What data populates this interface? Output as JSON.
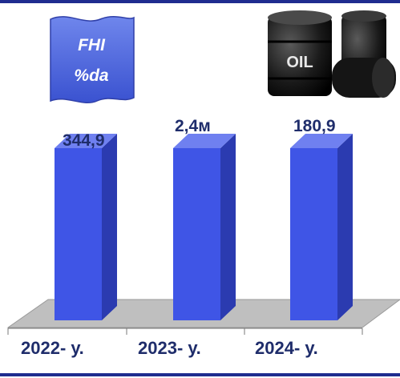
{
  "badge": {
    "title": "FHI",
    "subtitle": "%da"
  },
  "oil_label": "OIL",
  "colors": {
    "bar_front": "#3f55e6",
    "bar_side": "#2b3bb0",
    "bar_top": "#6f80f0",
    "floor": "#bfbfbf",
    "text": "#1f2d6b",
    "frame": "#1f2d8f",
    "badge_fill": "#4a63d8"
  },
  "chart_data": {
    "type": "bar",
    "categories": [
      "2022- у.",
      "2023- у.",
      "2024- у."
    ],
    "values": [
      344.9,
      2.4,
      180.9
    ],
    "data_labels": [
      "344,9",
      "2,4м",
      "180,9"
    ],
    "title": "",
    "xlabel": "",
    "ylabel": "",
    "grid": false,
    "legend": "none"
  }
}
